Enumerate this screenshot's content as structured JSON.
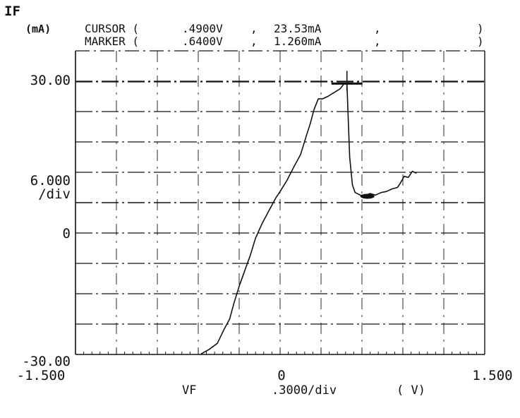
{
  "readout": {
    "cursor_label": "CURSOR (",
    "cursor_x": ".4900V",
    "cursor_y": "23.53mA",
    "marker_label": "MARKER (",
    "marker_x": ".6400V",
    "marker_y": "1.260mA",
    "sep": ",",
    "close": ")"
  },
  "chart_data": {
    "type": "line",
    "y_title": "IF",
    "y_unit": "(mA)",
    "y_ticks": {
      "top": "30.00",
      "scale": "6.000",
      "scale_unit": "/div",
      "zero": "0",
      "bottom": "-30.00"
    },
    "x_title": "VF",
    "x_scale": ".3000/div",
    "x_unit": "( V)",
    "x_ticks": {
      "left": "-1.500",
      "zero": "0",
      "right": "1.500"
    },
    "xlim": [
      -1.5,
      1.5
    ],
    "ylim": [
      -30,
      30
    ],
    "grid": true,
    "series": [
      {
        "x": [
          -0.58,
          -0.52,
          -0.46,
          -0.41,
          -0.37,
          -0.34,
          -0.3,
          -0.26,
          -0.22,
          -0.18,
          -0.13,
          -0.08,
          -0.03,
          0.0,
          0.05,
          0.1,
          0.15,
          0.19,
          0.22,
          0.25,
          0.28,
          0.31,
          0.35,
          0.38,
          0.41,
          0.44,
          0.47,
          0.49,
          0.5,
          0.51,
          0.53,
          0.55,
          0.58,
          0.6,
          0.63,
          0.66,
          0.7,
          0.74,
          0.78,
          0.82,
          0.86,
          0.88,
          0.91,
          0.94,
          0.97,
          1.0
        ],
        "y": [
          -29.9,
          -29.0,
          -27.8,
          -25.0,
          -23.0,
          -20.0,
          -16.5,
          -13.5,
          -10.5,
          -7.0,
          -4.0,
          -1.5,
          1.0,
          2.2,
          4.4,
          7.0,
          9.5,
          13.0,
          15.5,
          18.5,
          20.5,
          20.5,
          21.0,
          21.5,
          22.0,
          22.5,
          23.53,
          23.6,
          16.0,
          9.0,
          3.5,
          2.0,
          1.6,
          1.3,
          1.5,
          1.8,
          1.5,
          2.0,
          2.2,
          2.7,
          3.0,
          3.8,
          5.2,
          5.0,
          6.2,
          5.8
        ]
      }
    ],
    "cursor": {
      "x": 0.49,
      "y": 23.53
    },
    "marker": {
      "x": 0.64,
      "y": 1.26
    }
  }
}
